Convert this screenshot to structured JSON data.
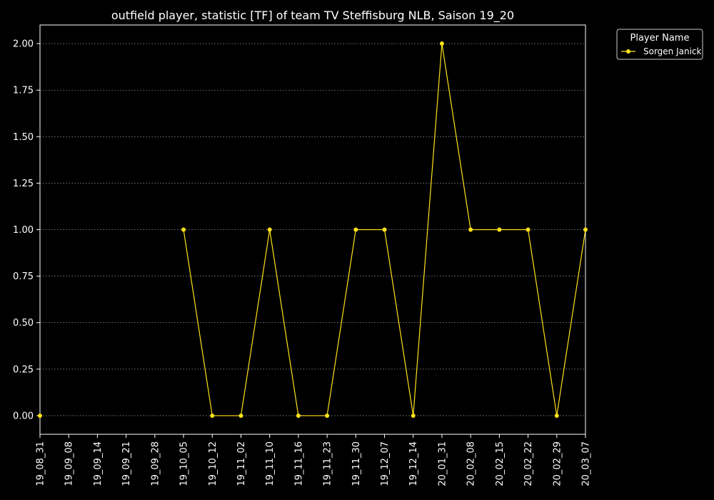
{
  "chart_data": {
    "type": "line",
    "title": "outfield player, statistic [TF] of team TV Steffisburg NLB, Saison 19_20",
    "xlabel": "",
    "ylabel": "",
    "categories": [
      "19_08_31",
      "19_09_08",
      "19_09_14",
      "19_09_21",
      "19_09_28",
      "19_10_05",
      "19_10_12",
      "19_11_02",
      "19_11_10",
      "19_11_16",
      "19_11_23",
      "19_11_30",
      "19_12_07",
      "19_12_14",
      "20_01_31",
      "20_02_08",
      "20_02_15",
      "20_02_22",
      "20_02_29",
      "20_03_07"
    ],
    "series": [
      {
        "name": "Sorgen Janick",
        "color": "#ffe119",
        "values": [
          0,
          null,
          null,
          null,
          null,
          1,
          0,
          0,
          1,
          0,
          0,
          1,
          1,
          0,
          2,
          1,
          1,
          1,
          0,
          1
        ]
      }
    ],
    "ylim": [
      -0.1,
      2.1
    ],
    "yticks": [
      "0.00",
      "0.25",
      "0.50",
      "0.75",
      "1.00",
      "1.25",
      "1.50",
      "1.75",
      "2.00"
    ],
    "grid": true,
    "legend": {
      "title": "Player Name",
      "placement": "outside-top-right"
    },
    "background": "#000000",
    "axis_color": "#ffffff"
  }
}
